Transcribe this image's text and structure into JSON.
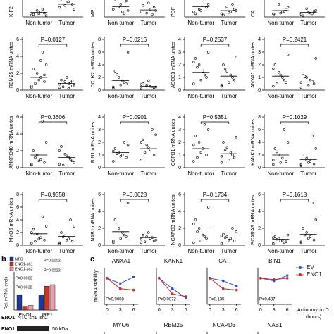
{
  "panels": [
    "b",
    "c"
  ],
  "chart_data": [
    {
      "type": "dot",
      "ylabel": "KIF2",
      "categories": [
        "Non-tumor",
        "Tumor"
      ],
      "ylim": [
        0,
        8
      ],
      "values": [
        [
          0.3,
          0.6,
          0.8,
          1.0,
          0.4,
          0.2,
          1.2,
          0.5
        ],
        [
          1.5,
          2,
          2.4,
          1.8,
          2.8,
          1.2,
          3,
          2.2
        ]
      ],
      "means": [
        0.7,
        2.0
      ]
    },
    {
      "type": "dot",
      "ylabel": "MP",
      "categories": [
        "Non-tumor",
        "Tumor"
      ],
      "ylim": [
        0,
        8
      ],
      "values": [
        [
          1.2,
          2.5,
          0.8,
          1.6,
          2.8,
          1.0,
          0.5,
          2.0
        ],
        [
          0.8,
          1.5,
          1.2,
          0.6,
          1.8,
          1.0,
          0.4,
          2.2
        ]
      ],
      "means": [
        1.6,
        1.1
      ]
    },
    {
      "type": "dot",
      "ylabel": "PDF",
      "categories": [
        "Non-tumor",
        "Tumor"
      ],
      "ylim": [
        0,
        8
      ],
      "values": [
        [
          0.8,
          1.5,
          2.6,
          1.2,
          0.5,
          2.0,
          3.0,
          1.0
        ],
        [
          0.5,
          1.2,
          0.8,
          1.6,
          0.3,
          1.0,
          2.0,
          0.7
        ]
      ],
      "means": [
        1.6,
        1.0
      ]
    },
    {
      "type": "dot",
      "ylabel": "CA",
      "categories": [
        "Non-tumor",
        "Tumor"
      ],
      "ylim": [
        0,
        8
      ],
      "values": [
        [
          0.5,
          1.2,
          0.8,
          2.0,
          0.3,
          1.5,
          0.9,
          0.6
        ],
        [
          0.4,
          0.9,
          0.6,
          1.3,
          0.2,
          1.0,
          0.5,
          0.7
        ]
      ],
      "means": [
        1.0,
        0.7
      ]
    },
    {
      "type": "dot",
      "ylabel": "RBM25 mRNA unites",
      "annotation": "P=0.0127",
      "categories": [
        "Non-tumor",
        "Tumor"
      ],
      "ylim": [
        0,
        6
      ],
      "yticks": [
        0,
        2,
        4,
        6
      ],
      "values": [
        [
          0.5,
          1,
          1.5,
          2,
          2.5,
          3,
          4.5,
          1.2,
          0.8,
          0.3,
          1.8,
          3.5
        ],
        [
          0.3,
          0.5,
          0.8,
          1,
          1.2,
          0.6,
          0.9,
          1.5,
          0.4,
          0.7,
          1.1,
          0.2
        ]
      ],
      "means": [
        1.5,
        0.8
      ]
    },
    {
      "type": "dot",
      "ylabel": "DCLK2 mRNA unites",
      "annotation": "P=0.0216",
      "categories": [
        "Non-tumor",
        "Tumor"
      ],
      "ylim": [
        0,
        8
      ],
      "yticks": [
        0,
        2,
        4,
        6,
        8
      ],
      "values": [
        [
          0.5,
          1,
          1.5,
          2,
          3,
          6,
          1.2,
          0.8,
          2.5,
          0.3
        ],
        [
          0.2,
          0.4,
          0.6,
          0.8,
          1,
          0.5,
          0.3,
          1.5,
          0.7,
          0.9
        ]
      ],
      "means": [
        1.5,
        0.6
      ]
    },
    {
      "type": "dot",
      "ylabel": "ASCC3 mRNA unites",
      "annotation": "P=0.2537",
      "categories": [
        "Non-tumor",
        "Tumor"
      ],
      "ylim": [
        0,
        4
      ],
      "yticks": [
        0,
        1,
        2,
        3,
        4
      ],
      "values": [
        [
          0.5,
          1,
          1.5,
          2,
          2.5,
          3,
          1.2,
          0.8,
          1.8,
          2.2
        ],
        [
          0.3,
          0.8,
          1.2,
          1.5,
          2,
          2.6,
          1,
          0.6,
          1.7,
          0.4
        ]
      ],
      "means": [
        1.4,
        1.1
      ]
    },
    {
      "type": "dot",
      "ylabel": "ANXA1 mRNA unites",
      "annotation": "P=0.2421",
      "categories": [
        "Non-tumor",
        "Tumor"
      ],
      "ylim": [
        0,
        4
      ],
      "yticks": [
        0,
        1,
        2,
        3,
        4
      ],
      "values": [
        [
          0.3,
          0.6,
          1,
          1.4,
          2,
          2.8,
          0.8,
          1.2,
          0.5,
          1.7
        ],
        [
          0.2,
          0.5,
          0.8,
          1,
          1.3,
          2.5,
          0.7,
          0.4,
          1.1,
          0.6
        ]
      ],
      "means": [
        1.1,
        0.8
      ]
    },
    {
      "type": "dot",
      "ylabel": "ANKRD40 mRNA unites",
      "annotation": "P=0.3606",
      "categories": [
        "Non-tumor",
        "Tumor"
      ],
      "ylim": [
        0,
        6
      ],
      "yticks": [
        0,
        2,
        4,
        6
      ],
      "values": [
        [
          0.3,
          0.6,
          1,
          1.5,
          2,
          3,
          5.5,
          0.8,
          1.2,
          0.4
        ],
        [
          0.4,
          0.8,
          1.2,
          1.6,
          2.5,
          0.6,
          1,
          1.4,
          0.3,
          2
        ]
      ],
      "means": [
        1.5,
        1.2
      ]
    },
    {
      "type": "dot",
      "ylabel": "BIN1 mRNA unites",
      "annotation": "P=0.0901",
      "categories": [
        "Non-tumor",
        "Tumor"
      ],
      "ylim": [
        0,
        4
      ],
      "yticks": [
        0,
        1,
        2,
        3,
        4
      ],
      "values": [
        [
          0.5,
          0.8,
          1,
          1.2,
          1.5,
          1.8,
          2,
          0.9,
          1.1,
          1.3
        ],
        [
          0.6,
          1,
          1.4,
          1.8,
          2.2,
          2.6,
          3,
          1.6,
          1.2,
          2
        ]
      ],
      "means": [
        1.2,
        1.5
      ]
    },
    {
      "type": "dot",
      "ylabel": "COPB1 mRNA unites",
      "annotation": "P=0.5351",
      "categories": [
        "Non-tumor",
        "Tumor"
      ],
      "ylim": [
        0,
        4
      ],
      "yticks": [
        0,
        1,
        2,
        3,
        4
      ],
      "values": [
        [
          0.5,
          1,
          1.5,
          2,
          2.5,
          3,
          3.4,
          1.2,
          0.8,
          1.8
        ],
        [
          0.4,
          0.8,
          1.2,
          1.6,
          2,
          2.4,
          1,
          0.6,
          1.4,
          0.9
        ]
      ],
      "means": [
        1.5,
        1.1
      ]
    },
    {
      "type": "dot",
      "ylabel": "KANK1 mRNA unites",
      "annotation": "P=0.1029",
      "categories": [
        "Non-tumor",
        "Tumor"
      ],
      "ylim": [
        0,
        8
      ],
      "yticks": [
        0,
        2,
        4,
        6,
        8
      ],
      "values": [
        [
          0.5,
          1,
          1.5,
          2,
          3,
          4,
          6,
          0.8,
          2.5,
          1.2
        ],
        [
          0.3,
          0.6,
          1,
          1.5,
          2,
          3,
          5,
          0.8,
          1.2,
          0.5
        ]
      ],
      "means": [
        2.0,
        1.3
      ]
    },
    {
      "type": "dot",
      "ylabel": "MYO6 mRNA unites",
      "annotation": "P=0.9358",
      "categories": [
        "Non-tumor",
        "Tumor"
      ],
      "ylim": [
        0,
        8
      ],
      "yticks": [
        0,
        2,
        4,
        6,
        8
      ],
      "values": [
        [
          0.3,
          0.8,
          1.2,
          1.8,
          2.5,
          3,
          4.5,
          1,
          0.6,
          2
        ],
        [
          0.2,
          0.6,
          1,
          1.5,
          2,
          3,
          4,
          0.8,
          1.3,
          0.4
        ]
      ],
      "means": [
        1.8,
        1.4
      ]
    },
    {
      "type": "dot",
      "ylabel": "NAB1 mRNA unites",
      "annotation": "P=0.0628",
      "categories": [
        "Non-tumor",
        "Tumor"
      ],
      "ylim": [
        0,
        6
      ],
      "yticks": [
        0,
        2,
        4,
        6
      ],
      "values": [
        [
          0.5,
          1,
          1.5,
          2,
          3,
          5,
          1.2,
          0.8,
          2.5,
          0.3
        ],
        [
          0.3,
          0.5,
          0.8,
          1,
          1.2,
          0.6,
          0.9,
          1.5,
          0.4,
          0.7
        ]
      ],
      "means": [
        1.6,
        0.9
      ]
    },
    {
      "type": "dot",
      "ylabel": "NCAPD3 mRNA unites",
      "annotation": "P=0.1734",
      "categories": [
        "Non-tumor",
        "Tumor"
      ],
      "ylim": [
        0,
        6
      ],
      "yticks": [
        0,
        2,
        4,
        6
      ],
      "values": [
        [
          0.3,
          0.8,
          1.2,
          2,
          3,
          4.5,
          1,
          0.5,
          1.6,
          2.5
        ],
        [
          0.2,
          0.5,
          0.8,
          1,
          1.3,
          1.6,
          2,
          0.6,
          0.9,
          1.1
        ]
      ],
      "means": [
        1.8,
        1.2
      ]
    },
    {
      "type": "dot",
      "ylabel": "SCARA3 mRNA unites",
      "annotation": "P=0.1618",
      "categories": [
        "Non-tumor",
        "Tumor"
      ],
      "ylim": [
        0,
        6
      ],
      "yticks": [
        0,
        2,
        4,
        6
      ],
      "values": [
        [
          0.2,
          0.4,
          0.6,
          0.8,
          1,
          1.2,
          0.3,
          0.5,
          0.7,
          0.9
        ],
        [
          0.3,
          0.6,
          1,
          1.5,
          2,
          3,
          5,
          0.8,
          1.2,
          0.4
        ]
      ],
      "means": [
        0.7,
        1.3
      ]
    },
    {
      "type": "bar",
      "ylabel": "Rel. mRNA levels",
      "categories": [
        "ENO1",
        "IRP1"
      ],
      "ylim": [
        0,
        2.2
      ],
      "series": [
        {
          "name": "NTC",
          "color": "#1f3a93",
          "values": [
            1,
            1
          ]
        },
        {
          "name": "ENO1-sh1",
          "color": "#c0392b",
          "values": [
            0.25,
            1.55
          ]
        },
        {
          "name": "ENO1-sh2",
          "color": "#e8a0b0",
          "values": [
            0.3,
            1.65
          ]
        }
      ],
      "annotations": [
        "P=0.0002",
        "P=0.0003",
        "P=0.0023",
        "P=0.0038"
      ],
      "blot": {
        "header": "ENO1",
        "lanes": [
          "NTC",
          "sh1",
          "sh2"
        ],
        "row_label": "ENO1",
        "size": "50 kDa"
      }
    },
    {
      "type": "line",
      "title": "ANXA1",
      "ylabel": "mRNA stability",
      "annotation": "P=0.0008",
      "x": [
        0,
        3,
        6
      ],
      "xlim": [
        -0.6,
        7
      ],
      "xticks": [
        0,
        3,
        6
      ],
      "ylim": [
        0,
        1.4
      ],
      "series": [
        {
          "color": "#2f4fd0",
          "values": [
            1,
            0.8,
            1.05
          ]
        },
        {
          "color": "#d62728",
          "values": [
            1,
            0.6,
            0.55
          ]
        }
      ]
    },
    {
      "type": "line",
      "title": "KANK1",
      "annotation": "P=0.0072",
      "x": [
        0,
        3,
        6
      ],
      "xlim": [
        -0.6,
        7
      ],
      "xticks": [
        0,
        3,
        6
      ],
      "ylim": [
        0,
        1.4
      ],
      "series": [
        {
          "color": "#2f4fd0",
          "values": [
            1,
            0.6,
            0.25
          ]
        },
        {
          "color": "#d62728",
          "values": [
            1,
            0.4,
            0.3
          ]
        }
      ]
    },
    {
      "type": "line",
      "title": "CAT",
      "annotation": "P=0.135",
      "x": [
        0,
        3,
        6
      ],
      "xlim": [
        -0.6,
        7
      ],
      "xticks": [
        0,
        3,
        6
      ],
      "ylim": [
        0,
        1.4
      ],
      "series": [
        {
          "color": "#2f4fd0",
          "values": [
            1,
            0.9,
            0.7
          ]
        },
        {
          "color": "#d62728",
          "values": [
            1,
            0.6,
            0.55
          ]
        }
      ]
    },
    {
      "type": "line",
      "title": "BIN1",
      "annotation": "P=0.437",
      "x": [
        0,
        3,
        6
      ],
      "xlim": [
        -0.6,
        7
      ],
      "xticks": [
        0,
        3,
        6
      ],
      "ylim": [
        0,
        1.4
      ],
      "xlabel": [
        "Actinomycin D",
        "(hours)"
      ],
      "series": [
        {
          "name": "EV",
          "color": "#2f4fd0",
          "values": [
            1,
            0.9,
            1.1
          ]
        },
        {
          "name": "ENO1",
          "color": "#d62728",
          "values": [
            1,
            0.95,
            1.0
          ]
        }
      ]
    },
    {
      "type": "line",
      "title": "MYO6"
    },
    {
      "type": "line",
      "title": "RBM25"
    },
    {
      "type": "line",
      "title": "NCAPD3"
    },
    {
      "type": "line",
      "title": "NAB1"
    }
  ]
}
